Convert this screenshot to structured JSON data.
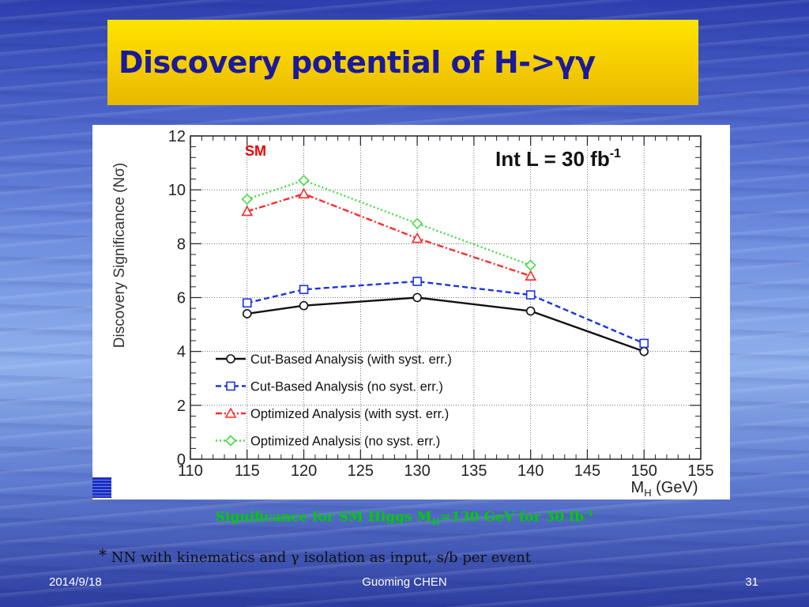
{
  "slide": {
    "title": "Discovery potential of H->γγ",
    "caption": {
      "main": "Significance for SM Higgs M",
      "sub": "H",
      "mid": "=130 GeV for 30 fb",
      "sup": "-1"
    },
    "footnote": {
      "star": "*",
      "text": " NN with kinematics and γ isolation as input, s/b per event"
    },
    "footer": {
      "date": "2014/9/18",
      "author": "Guoming CHEN",
      "page": "31"
    }
  },
  "chart_data": {
    "type": "line",
    "ylabel": "Discovery Significance (Nσ)",
    "xlabel": "M",
    "xlabel_sub": "H",
    "xlabel_unit": " (GeV)",
    "xlim": [
      110,
      155
    ],
    "ylim": [
      0,
      12
    ],
    "xticks": [
      110,
      115,
      120,
      125,
      130,
      135,
      140,
      145,
      150,
      155
    ],
    "yticks": [
      0,
      2,
      4,
      6,
      8,
      10,
      12
    ],
    "grid": true,
    "legend_position": "bottom-left",
    "annotations": {
      "sm": "SM",
      "lumi_prefix": "Int L = 30 fb",
      "lumi_sup": "-1"
    },
    "series": [
      {
        "name": "Cut-Based Analysis (with syst. err.)",
        "color": "#111111",
        "dash": "solid",
        "marker": "circle",
        "x": [
          115,
          120,
          130,
          140,
          150
        ],
        "y": [
          5.4,
          5.7,
          6.0,
          5.5,
          4.0
        ]
      },
      {
        "name": "Cut-Based Analysis (no syst. err.)",
        "color": "#1a35e0",
        "dash": "dashed",
        "marker": "square",
        "x": [
          115,
          120,
          130,
          140,
          150
        ],
        "y": [
          5.8,
          6.3,
          6.6,
          6.1,
          4.3
        ]
      },
      {
        "name": "Optimized Analysis (with syst. err.)",
        "color": "#ff2a2a",
        "dash": "dashdot",
        "marker": "triangle",
        "x": [
          115,
          120,
          130,
          140
        ],
        "y": [
          9.2,
          9.85,
          8.2,
          6.8
        ]
      },
      {
        "name": "Optimized Analysis (no syst. err.)",
        "color": "#44dd44",
        "dash": "dotted",
        "marker": "diamond",
        "x": [
          115,
          120,
          130,
          140
        ],
        "y": [
          9.65,
          10.35,
          8.75,
          7.2
        ]
      }
    ]
  }
}
